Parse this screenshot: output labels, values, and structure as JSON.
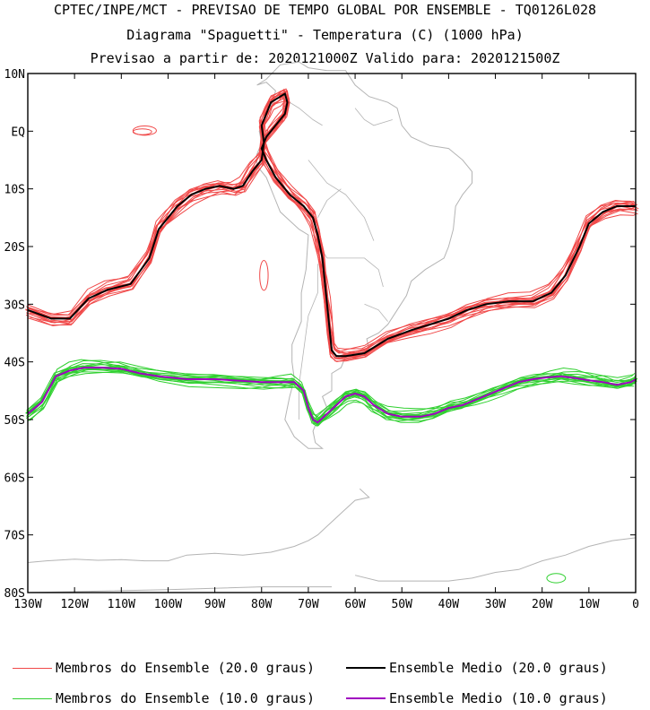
{
  "header": {
    "line1": "CPTEC/INPE/MCT - PREVISAO DE TEMPO GLOBAL POR ENSEMBLE - TQ0126L028",
    "line2": "Diagrama \"Spaguetti\" - Temperatura (C) (1000 hPa)",
    "line3": "Previsao a partir de: 2020121000Z  Valido para: 2020121500Z"
  },
  "chart_data": {
    "type": "line",
    "title": "Diagrama \"Spaguetti\" - Temperatura (C) (1000 hPa)",
    "xlabel": "",
    "ylabel": "",
    "xlim": [
      -130,
      0
    ],
    "ylim": [
      -80,
      10
    ],
    "x_ticks": [
      -130,
      -120,
      -110,
      -100,
      -90,
      -80,
      -70,
      -60,
      -50,
      -40,
      -30,
      -20,
      -10,
      0
    ],
    "x_tick_labels": [
      "130W",
      "120W",
      "110W",
      "100W",
      "90W",
      "80W",
      "70W",
      "60W",
      "50W",
      "40W",
      "30W",
      "20W",
      "10W",
      "0"
    ],
    "y_ticks": [
      10,
      0,
      -10,
      -20,
      -30,
      -40,
      -50,
      -60,
      -70,
      -80
    ],
    "y_tick_labels": [
      "10N",
      "EQ",
      "10S",
      "20S",
      "30S",
      "40S",
      "50S",
      "60S",
      "70S",
      "80S"
    ],
    "grid": false,
    "colors": {
      "member20": "#f04848",
      "mean20": "#000000",
      "member10": "#30d030",
      "mean10": "#a000c0",
      "coast": "#b4b4b4"
    },
    "series": [
      {
        "name": "Ensemble Medio (20.0 graus)",
        "lon": [
          -130,
          -125,
          -121,
          -117,
          -113,
          -108,
          -104,
          -102,
          -100,
          -98,
          -95,
          -92,
          -89,
          -86,
          -84,
          -82,
          -80,
          -79.5,
          -80,
          -79,
          -78,
          -76,
          -75,
          -74.5,
          -75,
          -77,
          -79,
          -80,
          -79,
          -77,
          -74,
          -71,
          -69,
          -68,
          -67,
          -66.5,
          -66,
          -65.5,
          -65,
          -64,
          -62,
          -58,
          -53,
          -48,
          -44,
          -40,
          -36,
          -32,
          -27,
          -22,
          -18,
          -15,
          -12,
          -10,
          -7,
          -4,
          -1,
          0
        ],
        "lat": [
          -31,
          -32.5,
          -32.5,
          -29,
          -27.5,
          -26.5,
          -22,
          -17,
          -15,
          -13,
          -11,
          -10,
          -9.5,
          -10,
          -9.5,
          -7,
          -5,
          -2,
          1,
          3,
          5,
          6,
          6.5,
          5,
          3,
          1,
          -1,
          -3,
          -5,
          -8,
          -11,
          -13,
          -15,
          -18,
          -22,
          -26,
          -30,
          -34,
          -38,
          -39,
          -39,
          -38.5,
          -36,
          -34.5,
          -33.5,
          -32.5,
          -31,
          -30,
          -29.5,
          -29.5,
          -28,
          -25,
          -20,
          -16,
          -14,
          -13,
          -13,
          -13
        ]
      },
      {
        "name": "Ensemble Medio (10.0 graus)",
        "lon": [
          -130,
          -127,
          -124,
          -121,
          -118,
          -114,
          -110,
          -106,
          -102,
          -96,
          -90,
          -84,
          -80,
          -76,
          -73,
          -71,
          -70,
          -69,
          -68,
          -66,
          -64,
          -62,
          -60,
          -58,
          -56,
          -53,
          -50,
          -46,
          -43,
          -40,
          -37,
          -34,
          -31,
          -28,
          -25,
          -22,
          -19,
          -16,
          -13,
          -10,
          -7,
          -4,
          -1,
          0
        ],
        "lat": [
          -49,
          -47,
          -42.5,
          -41.5,
          -41,
          -41,
          -41.2,
          -42,
          -42.5,
          -43,
          -43,
          -43.3,
          -43.5,
          -43.5,
          -43.5,
          -45,
          -48,
          -50,
          -50.5,
          -49,
          -47.5,
          -46,
          -45.5,
          -46,
          -47.5,
          -49,
          -49.5,
          -49.5,
          -49,
          -48,
          -47.5,
          -46.5,
          -45.5,
          -44.5,
          -43.5,
          -43,
          -42.7,
          -42.5,
          -42.8,
          -43.2,
          -43.5,
          -44,
          -43.5,
          -43
        ]
      }
    ],
    "legend": {
      "placement": "bottom",
      "entries": [
        {
          "label": "Membros do Ensemble (20.0 graus)",
          "color": "#f04848"
        },
        {
          "label": "Ensemble Medio (20.0 graus)",
          "color": "#000000"
        },
        {
          "label": "Membros do Ensemble (10.0 graus)",
          "color": "#30d030"
        },
        {
          "label": "Ensemble Medio (10.0 graus)",
          "color": "#a000c0"
        }
      ]
    }
  }
}
